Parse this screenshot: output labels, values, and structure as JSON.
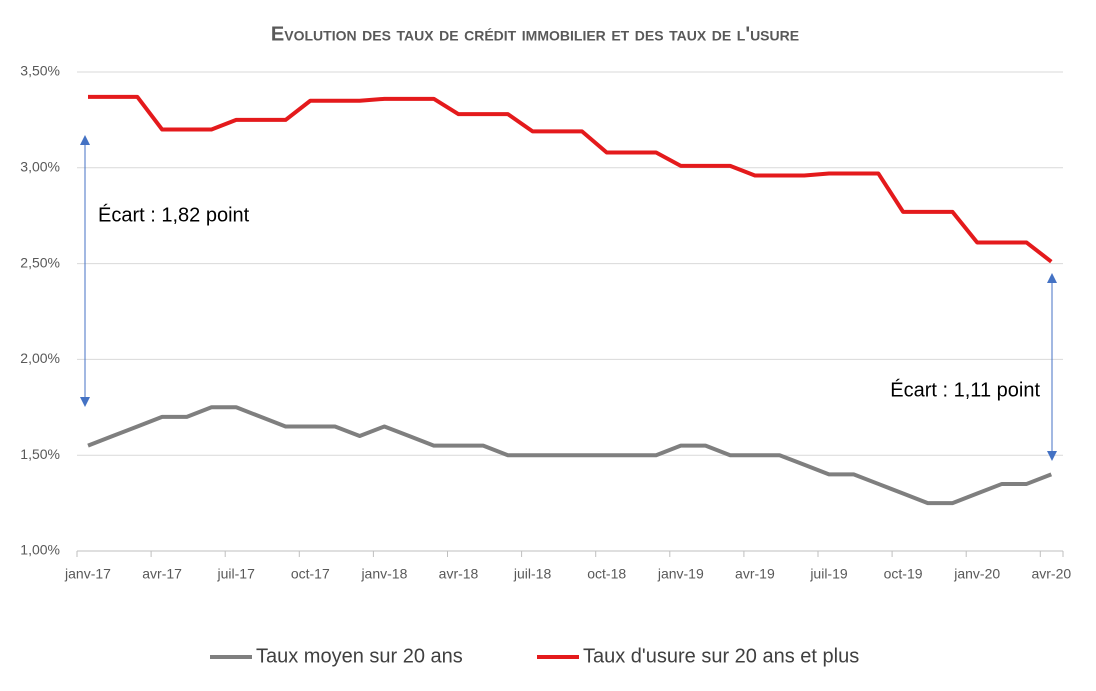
{
  "chart_data": {
    "type": "line",
    "title": "Evolution des taux de crédit immobilier et des taux de l'usure",
    "categories": [
      "janv-17",
      null,
      null,
      "avr-17",
      null,
      null,
      "juil-17",
      null,
      null,
      "oct-17",
      null,
      null,
      "janv-18",
      null,
      null,
      "avr-18",
      null,
      null,
      "juil-18",
      null,
      null,
      "oct-18",
      null,
      null,
      "janv-19",
      null,
      null,
      "avr-19",
      null,
      null,
      "juil-19",
      null,
      null,
      "oct-19",
      null,
      null,
      "janv-20",
      null,
      null,
      "avr-20"
    ],
    "series": [
      {
        "name": "Taux moyen sur 20 ans",
        "color": "#7f7f7f",
        "values": [
          1.55,
          1.6,
          1.65,
          1.7,
          1.7,
          1.75,
          1.75,
          1.7,
          1.65,
          1.65,
          1.65,
          1.6,
          1.65,
          1.6,
          1.55,
          1.55,
          1.55,
          1.5,
          1.5,
          1.5,
          1.5,
          1.5,
          1.5,
          1.5,
          1.55,
          1.55,
          1.5,
          1.5,
          1.5,
          1.45,
          1.4,
          1.4,
          1.35,
          1.3,
          1.25,
          1.25,
          1.3,
          1.35,
          1.35,
          1.4
        ]
      },
      {
        "name": "Taux d'usure sur 20 ans et plus",
        "color": "#e41a1c",
        "values": [
          3.37,
          3.37,
          3.37,
          3.2,
          3.2,
          3.2,
          3.25,
          3.25,
          3.25,
          3.35,
          3.35,
          3.35,
          3.36,
          3.36,
          3.36,
          3.28,
          3.28,
          3.28,
          3.19,
          3.19,
          3.19,
          3.08,
          3.08,
          3.08,
          3.01,
          3.01,
          3.01,
          2.96,
          2.96,
          2.96,
          2.97,
          2.97,
          2.97,
          2.77,
          2.77,
          2.77,
          2.61,
          2.61,
          2.61,
          2.51
        ]
      }
    ],
    "ylim": [
      1.0,
      3.5
    ],
    "yticks": [
      {
        "value": 1.0,
        "label": "1,00%"
      },
      {
        "value": 1.5,
        "label": "1,50%"
      },
      {
        "value": 2.0,
        "label": "2,00%"
      },
      {
        "value": 2.5,
        "label": "2,50%"
      },
      {
        "value": 3.0,
        "label": "3,00%"
      },
      {
        "value": 3.5,
        "label": "3,50%"
      }
    ],
    "grid": true,
    "legend": "bottom",
    "annotations": [
      "Écart : 1,82 point",
      "Écart : 1,11 point"
    ]
  }
}
